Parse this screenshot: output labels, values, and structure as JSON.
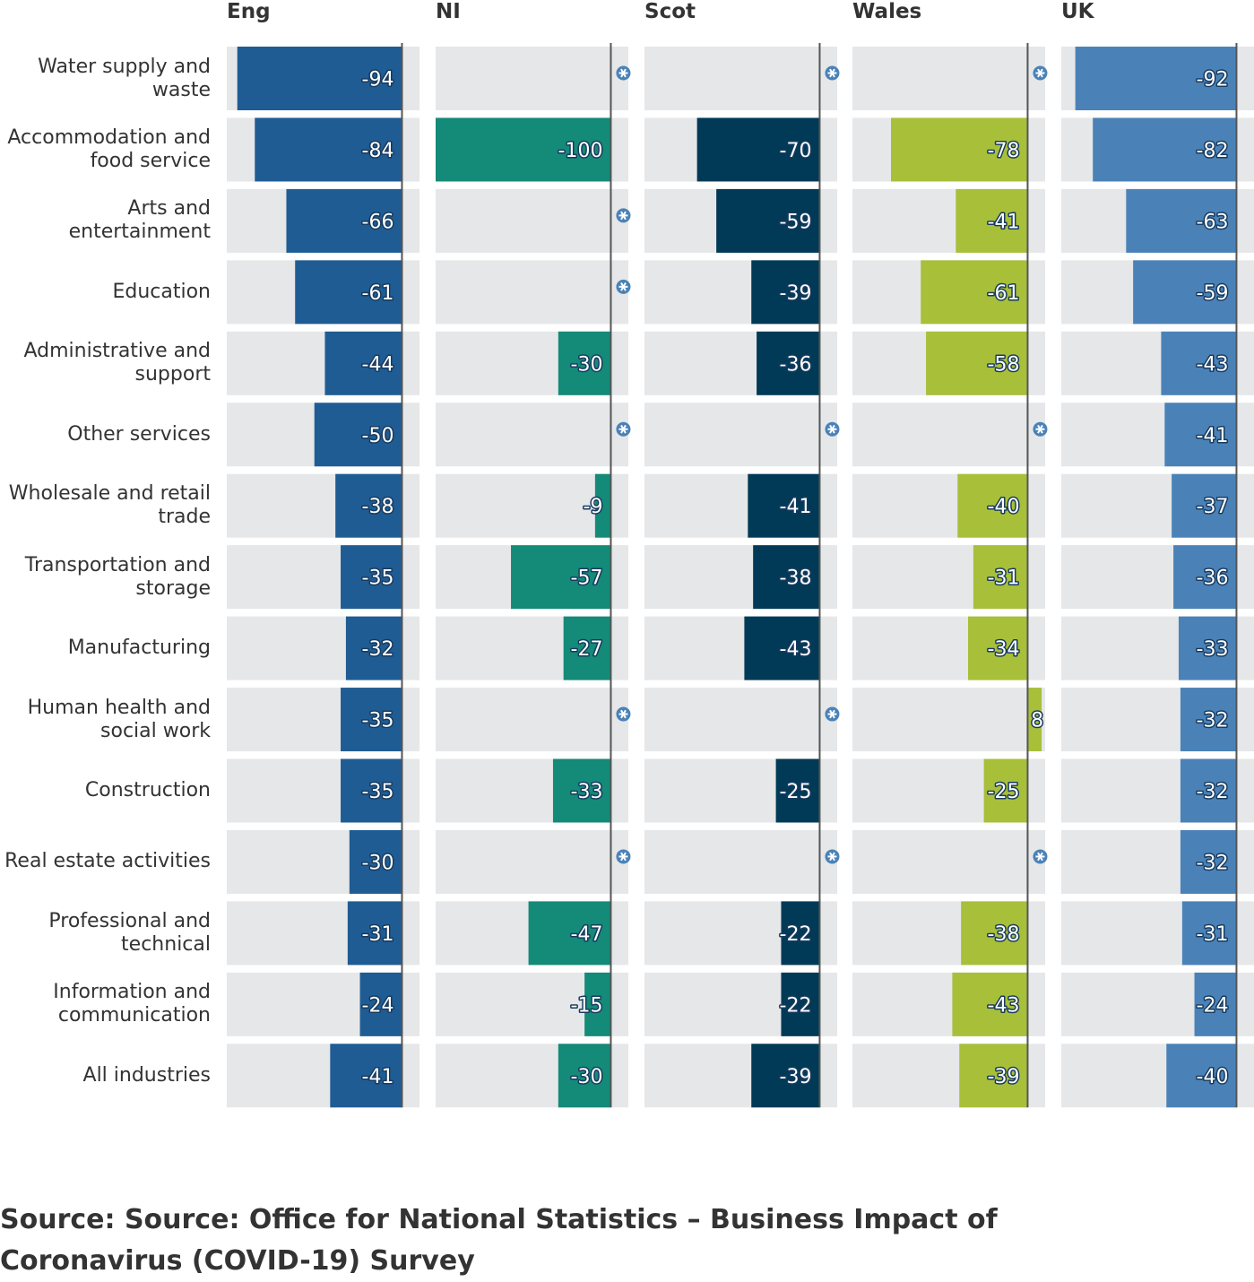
{
  "chart_data": {
    "type": "bar",
    "orientation": "horizontal",
    "categories": [
      "Water supply and\nwaste",
      "Accommodation and\nfood service",
      "Arts and\nentertainment",
      "Education",
      "Administrative and\nsupport",
      "Other services",
      "Wholesale and retail\ntrade",
      "Transportation and\nstorage",
      "Manufacturing",
      "Human health and\nsocial work",
      "Construction",
      "Real estate activities",
      "Professional and\ntechnical",
      "Information and\ncommunication",
      "All industries"
    ],
    "series": [
      {
        "name": "Eng",
        "color": "#1f5c94",
        "values": [
          -94,
          -84,
          -66,
          -61,
          -44,
          -50,
          -38,
          -35,
          -32,
          -35,
          -35,
          -30,
          -31,
          -24,
          -41
        ]
      },
      {
        "name": "NI",
        "color": "#148a78",
        "values": [
          null,
          -100,
          null,
          null,
          -30,
          null,
          -9,
          -57,
          -27,
          null,
          -33,
          null,
          -47,
          -15,
          -30
        ]
      },
      {
        "name": "Scot",
        "color": "#003a57",
        "values": [
          null,
          -70,
          -59,
          -39,
          -36,
          null,
          -41,
          -38,
          -43,
          null,
          -25,
          null,
          -22,
          -22,
          -39
        ]
      },
      {
        "name": "Wales",
        "color": "#a8bf3a",
        "values": [
          null,
          -78,
          -41,
          -61,
          -58,
          null,
          -40,
          -31,
          -34,
          8,
          -25,
          null,
          -38,
          -43,
          -39
        ]
      },
      {
        "name": "UK",
        "color": "#4a82b8",
        "values": [
          -92,
          -82,
          -63,
          -59,
          -43,
          -41,
          -37,
          -36,
          -33,
          -32,
          -32,
          -32,
          -31,
          -24,
          -40
        ]
      }
    ],
    "xlim": [
      -100,
      10
    ],
    "source": "Source: Source: Office for National Statistics – Business Impact of Coronavirus (COVID-19) Survey"
  }
}
